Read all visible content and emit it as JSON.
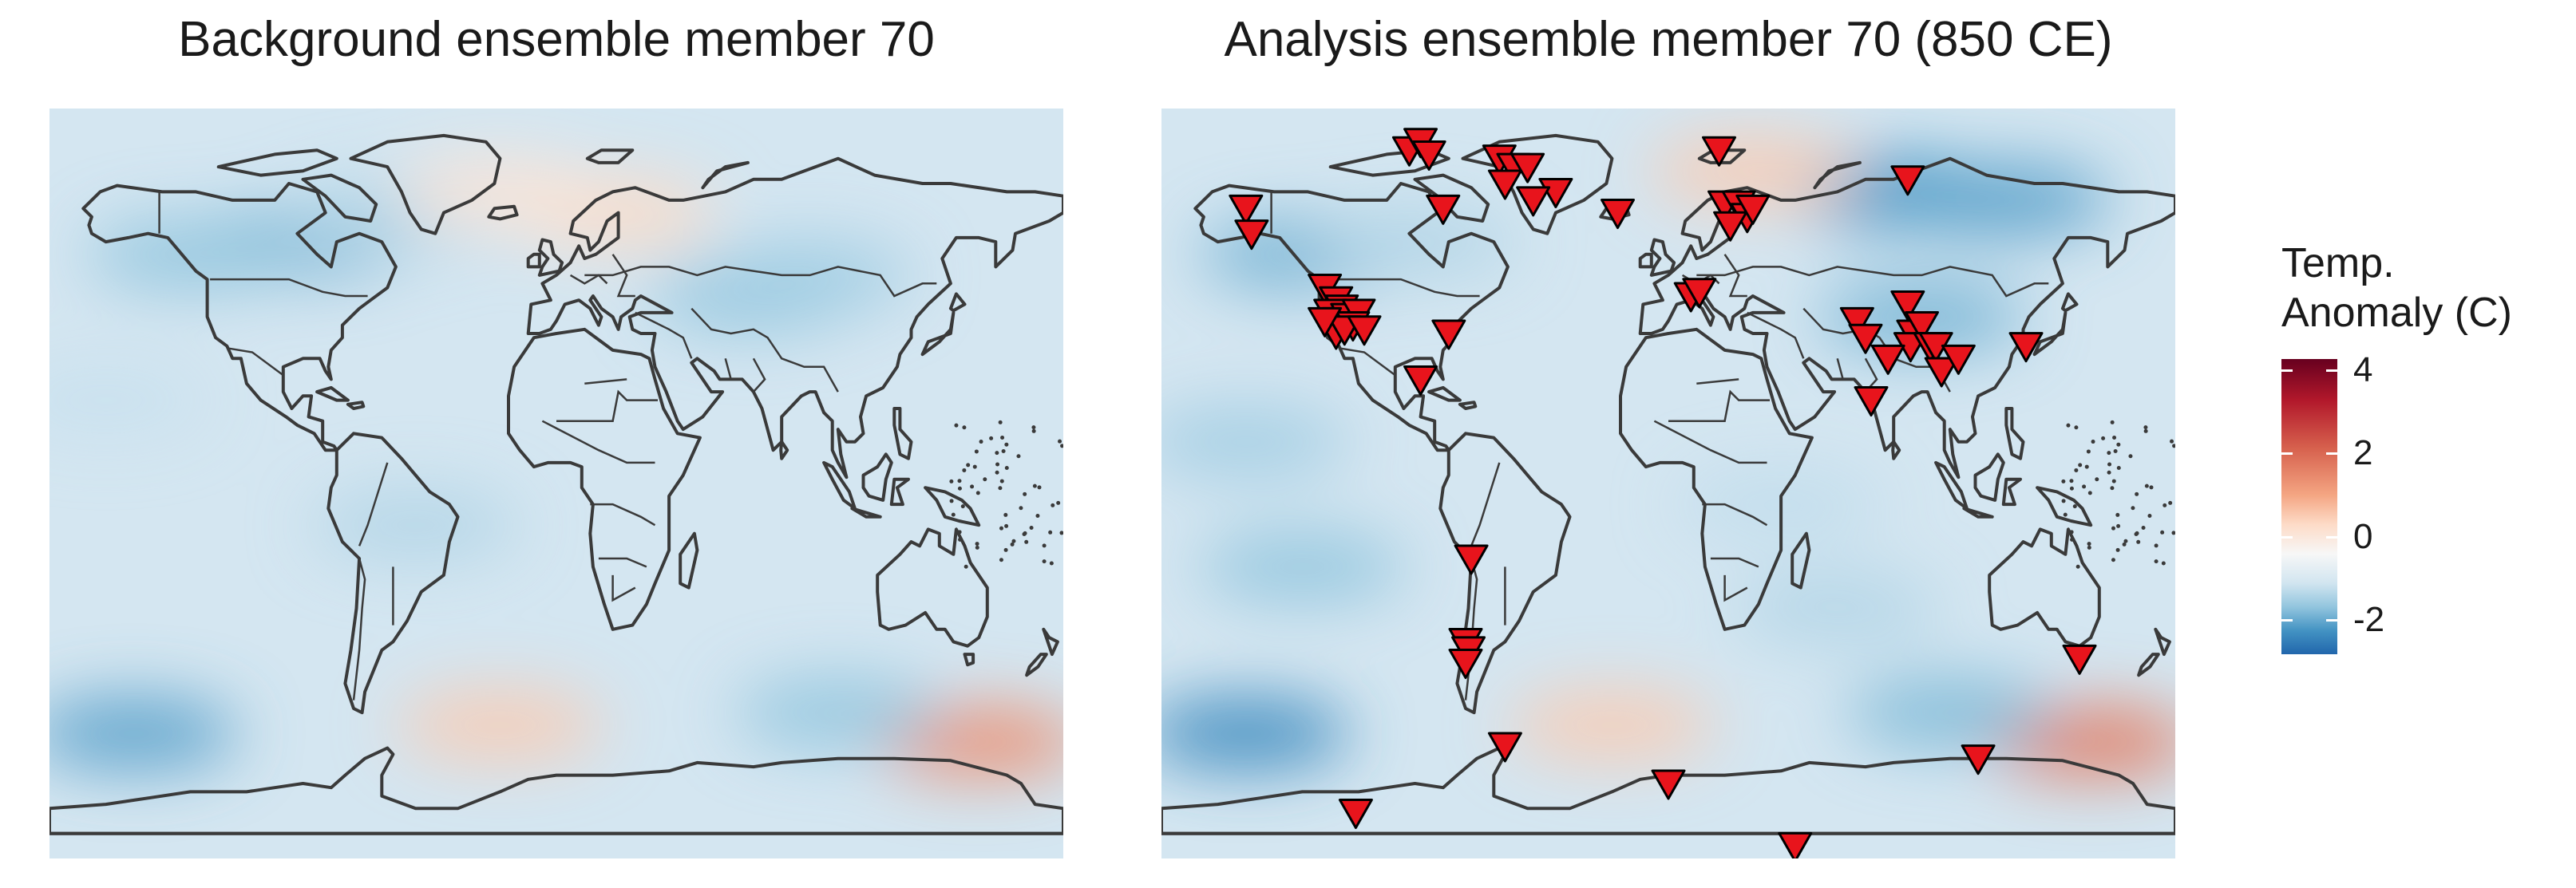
{
  "panels": [
    {
      "title": "Background ensemble member 70"
    },
    {
      "title": "Analysis ensemble member 70 (850 CE)"
    }
  ],
  "legend": {
    "title_line1": "Temp.",
    "title_line2": "Anomaly (C)",
    "ticks": [
      "4",
      "2",
      "0",
      "-2"
    ]
  },
  "colors": {
    "ocean_background": "#dde9f2",
    "coastline": "#3a3a3a",
    "marker_fill": "#e8141c",
    "marker_stroke": "#000000",
    "warm": "#f4a582",
    "cold": "#4a86c0"
  },
  "chart_data": [
    {
      "type": "heatmap",
      "title": "Background ensemble member 70",
      "value_range": [
        -3,
        4.5
      ],
      "xlim": [
        -180,
        180
      ],
      "ylim": [
        -90,
        90
      ],
      "anomalies": [
        {
          "lon": -90,
          "lat": 58,
          "value": -1.5
        },
        {
          "lon": -130,
          "lat": 55,
          "value": -1.2
        },
        {
          "lon": -60,
          "lat": 64,
          "value": -0.8
        },
        {
          "lon": 20,
          "lat": 65,
          "value": 1.2
        },
        {
          "lon": -20,
          "lat": 70,
          "value": 1.0
        },
        {
          "lon": 70,
          "lat": 45,
          "value": -1.2
        },
        {
          "lon": 90,
          "lat": 50,
          "value": -1.0
        },
        {
          "lon": -150,
          "lat": -60,
          "value": -1.8
        },
        {
          "lon": -20,
          "lat": -58,
          "value": 1.5
        },
        {
          "lon": 150,
          "lat": -62,
          "value": 2.5
        },
        {
          "lon": 100,
          "lat": -55,
          "value": -1.2
        },
        {
          "lon": -50,
          "lat": -10,
          "value": -0.8
        },
        {
          "lon": -160,
          "lat": 20,
          "value": -0.5
        }
      ]
    },
    {
      "type": "heatmap",
      "title": "Analysis ensemble member 70 (850 CE)",
      "value_range": [
        -3,
        4.5
      ],
      "xlim": [
        -180,
        180
      ],
      "ylim": [
        -90,
        90
      ],
      "anomalies": [
        {
          "lon": -130,
          "lat": 55,
          "value": -1.5
        },
        {
          "lon": -90,
          "lat": 58,
          "value": -0.8
        },
        {
          "lon": 80,
          "lat": 70,
          "value": -2.0
        },
        {
          "lon": 120,
          "lat": 68,
          "value": -1.8
        },
        {
          "lon": 30,
          "lat": 75,
          "value": 1.5
        },
        {
          "lon": 90,
          "lat": 40,
          "value": -1.5
        },
        {
          "lon": -150,
          "lat": 10,
          "value": -1.0
        },
        {
          "lon": -130,
          "lat": -20,
          "value": -1.2
        },
        {
          "lon": 60,
          "lat": -30,
          "value": -0.8
        },
        {
          "lon": -150,
          "lat": -60,
          "value": -2.2
        },
        {
          "lon": -20,
          "lat": -58,
          "value": 1.5
        },
        {
          "lon": 150,
          "lat": -62,
          "value": 2.8
        },
        {
          "lon": 100,
          "lat": -55,
          "value": -1.4
        },
        {
          "lon": 40,
          "lat": -5,
          "value": -0.6
        }
      ],
      "proxy_sites": [
        {
          "lon": -150,
          "lat": 66
        },
        {
          "lon": -148,
          "lat": 60
        },
        {
          "lon": -92,
          "lat": 80
        },
        {
          "lon": -88,
          "lat": 82
        },
        {
          "lon": -85,
          "lat": 79
        },
        {
          "lon": -60,
          "lat": 78
        },
        {
          "lon": -55,
          "lat": 76
        },
        {
          "lon": -50,
          "lat": 76
        },
        {
          "lon": -58,
          "lat": 72
        },
        {
          "lon": -40,
          "lat": 70
        },
        {
          "lon": -48,
          "lat": 68
        },
        {
          "lon": -80,
          "lat": 66
        },
        {
          "lon": -18,
          "lat": 65
        },
        {
          "lon": 18,
          "lat": 80
        },
        {
          "lon": 20,
          "lat": 67
        },
        {
          "lon": 25,
          "lat": 67
        },
        {
          "lon": 28,
          "lat": 64
        },
        {
          "lon": 22,
          "lat": 62
        },
        {
          "lon": 30,
          "lat": 66
        },
        {
          "lon": 85,
          "lat": 73
        },
        {
          "lon": -122,
          "lat": 47
        },
        {
          "lon": -118,
          "lat": 44
        },
        {
          "lon": -116,
          "lat": 42
        },
        {
          "lon": -120,
          "lat": 41
        },
        {
          "lon": -117,
          "lat": 39
        },
        {
          "lon": -114,
          "lat": 40
        },
        {
          "lon": -110,
          "lat": 41
        },
        {
          "lon": -112,
          "lat": 38
        },
        {
          "lon": -118,
          "lat": 36
        },
        {
          "lon": -115,
          "lat": 37
        },
        {
          "lon": -122,
          "lat": 39
        },
        {
          "lon": -108,
          "lat": 37
        },
        {
          "lon": -78,
          "lat": 36
        },
        {
          "lon": -88,
          "lat": 25
        },
        {
          "lon": 8,
          "lat": 45
        },
        {
          "lon": 11,
          "lat": 46
        },
        {
          "lon": 67,
          "lat": 39
        },
        {
          "lon": 70,
          "lat": 35
        },
        {
          "lon": 85,
          "lat": 43
        },
        {
          "lon": 87,
          "lat": 36
        },
        {
          "lon": 90,
          "lat": 38
        },
        {
          "lon": 86,
          "lat": 33
        },
        {
          "lon": 93,
          "lat": 33
        },
        {
          "lon": 95,
          "lat": 33
        },
        {
          "lon": 97,
          "lat": 27
        },
        {
          "lon": 78,
          "lat": 30
        },
        {
          "lon": 103,
          "lat": 30
        },
        {
          "lon": 127,
          "lat": 33
        },
        {
          "lon": 72,
          "lat": 20
        },
        {
          "lon": -70,
          "lat": -18
        },
        {
          "lon": -72,
          "lat": -38
        },
        {
          "lon": -71,
          "lat": -40
        },
        {
          "lon": -72,
          "lat": -43
        },
        {
          "lon": 146,
          "lat": -42
        },
        {
          "lon": -58,
          "lat": -63
        },
        {
          "lon": -111,
          "lat": -79
        },
        {
          "lon": 0,
          "lat": -72
        },
        {
          "lon": 110,
          "lat": -66
        },
        {
          "lon": 45,
          "lat": -87
        }
      ]
    }
  ]
}
